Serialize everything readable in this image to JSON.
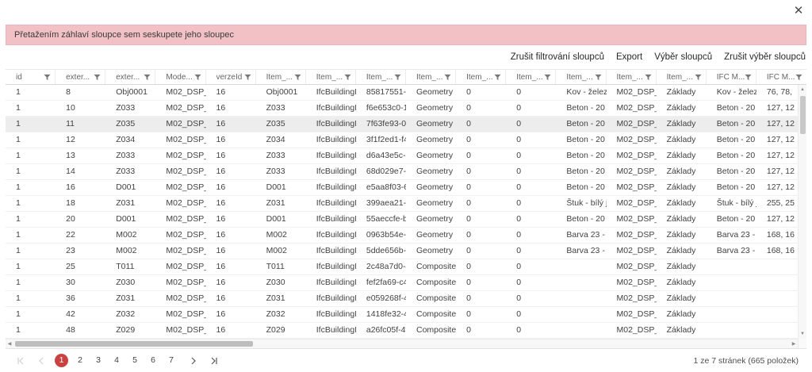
{
  "dialog": {
    "banner_text": "Přetažením záhlaví sloupce sem seskupete jeho sloupec"
  },
  "toolbar": {
    "links": [
      "Zrušit filtrování sloupců",
      "Export",
      "Výběr sloupců",
      "Zrušit výběr sloupců"
    ]
  },
  "grid": {
    "columns": [
      "id",
      "exter...",
      "exter...",
      "Mode...",
      "verzeId",
      "Item_...",
      "Item_...",
      "Item_...",
      "Item_...",
      "Item_...",
      "Item_...",
      "Item_...",
      "Item_...",
      "Item_...",
      "IFC M...",
      "IFC M..."
    ],
    "selected_row_index": 2,
    "rows": [
      [
        "1",
        "8",
        "Obj0001",
        "M02_DSP_...",
        "16",
        "Obj0001",
        "IfcBuildingE...",
        "85817551-f...",
        "Geometry",
        "0",
        "0",
        "Kov - železo",
        "M02_DSP_...",
        "Základy",
        "Kov - železo",
        "76, 78,"
      ],
      [
        "1",
        "10",
        "Z033",
        "M02_DSP_...",
        "16",
        "Z033",
        "IfcBuildingE...",
        "f6e653c0-1...",
        "Geometry",
        "0",
        "0",
        "Beton - 20",
        "M02_DSP_...",
        "Základy",
        "Beton - 20",
        "127, 12"
      ],
      [
        "1",
        "11",
        "Z035",
        "M02_DSP_...",
        "16",
        "Z035",
        "IfcBuildingE...",
        "7f63fe93-0...",
        "Geometry",
        "0",
        "0",
        "Beton - 20",
        "M02_DSP_...",
        "Základy",
        "Beton - 20",
        "127, 12"
      ],
      [
        "1",
        "12",
        "Z034",
        "M02_DSP_...",
        "16",
        "Z034",
        "IfcBuildingE...",
        "3f1f2ed1-f4...",
        "Geometry",
        "0",
        "0",
        "Beton - 20",
        "M02_DSP_...",
        "Základy",
        "Beton - 20",
        "127, 12"
      ],
      [
        "1",
        "13",
        "Z033",
        "M02_DSP_...",
        "16",
        "Z033",
        "IfcBuildingE...",
        "d6a43e5c-b...",
        "Geometry",
        "0",
        "0",
        "Beton - 20",
        "M02_DSP_...",
        "Základy",
        "Beton - 20",
        "127, 12"
      ],
      [
        "1",
        "14",
        "Z033",
        "M02_DSP_...",
        "16",
        "Z033",
        "IfcBuildingE...",
        "68d029e7-d...",
        "Geometry",
        "0",
        "0",
        "Beton - 20",
        "M02_DSP_...",
        "Základy",
        "Beton - 20",
        "127, 12"
      ],
      [
        "1",
        "16",
        "D001",
        "M02_DSP_...",
        "16",
        "D001",
        "IfcBuildingE...",
        "e5aa8f03-6...",
        "Geometry",
        "0",
        "0",
        "Beton - 20",
        "M02_DSP_...",
        "Základy",
        "Beton - 20",
        "127, 12"
      ],
      [
        "1",
        "18",
        "Z031",
        "M02_DSP_...",
        "16",
        "Z031",
        "IfcBuildingE...",
        "399aea21-3...",
        "Geometry",
        "0",
        "0",
        "Štuk - bílý je...",
        "M02_DSP_...",
        "Základy",
        "Štuk - bílý je...",
        "255, 25"
      ],
      [
        "1",
        "20",
        "D001",
        "M02_DSP_...",
        "16",
        "D001",
        "IfcBuildingE...",
        "55aeccfe-b...",
        "Geometry",
        "0",
        "0",
        "Beton - 20",
        "M02_DSP_...",
        "Základy",
        "Beton - 20",
        "127, 12"
      ],
      [
        "1",
        "22",
        "M002",
        "M02_DSP_...",
        "16",
        "M002",
        "IfcBuildingE...",
        "0963b54e-7...",
        "Geometry",
        "0",
        "0",
        "Barva 23 - s...",
        "M02_DSP_...",
        "Základy",
        "Barva 23 - s...",
        "168, 16"
      ],
      [
        "1",
        "23",
        "M002",
        "M02_DSP_...",
        "16",
        "M002",
        "IfcBuildingE...",
        "5dde656b-2...",
        "Geometry",
        "0",
        "0",
        "Barva 23 - s...",
        "M02_DSP_...",
        "Základy",
        "Barva 23 - s...",
        "168, 16"
      ],
      [
        "1",
        "25",
        "T011",
        "M02_DSP_...",
        "16",
        "T011",
        "IfcBuildingE...",
        "2c48a7d0-4...",
        "Composite ...",
        "0",
        "0",
        "",
        "M02_DSP_...",
        "Základy",
        "",
        ""
      ],
      [
        "1",
        "30",
        "Z030",
        "M02_DSP_...",
        "16",
        "Z030",
        "IfcBuildingE...",
        "fef2fa69-c4...",
        "Composite ...",
        "0",
        "0",
        "",
        "M02_DSP_...",
        "Základy",
        "",
        ""
      ],
      [
        "1",
        "36",
        "Z031",
        "M02_DSP_...",
        "16",
        "Z031",
        "IfcBuildingE...",
        "e059268f-4...",
        "Composite ...",
        "0",
        "0",
        "",
        "M02_DSP_...",
        "Základy",
        "",
        ""
      ],
      [
        "1",
        "42",
        "Z032",
        "M02_DSP_...",
        "16",
        "Z032",
        "IfcBuildingE...",
        "1418fe32-4...",
        "Composite ...",
        "0",
        "0",
        "",
        "M02_DSP_...",
        "Základy",
        "",
        ""
      ],
      [
        "1",
        "48",
        "Z029",
        "M02_DSP_...",
        "16",
        "Z029",
        "IfcBuildingE...",
        "a26fc05f-4f...",
        "Composite ...",
        "0",
        "0",
        "",
        "M02_DSP_...",
        "Základy",
        "",
        ""
      ]
    ]
  },
  "pager": {
    "pages": [
      "1",
      "2",
      "3",
      "4",
      "5",
      "6",
      "7"
    ],
    "current_page": "1",
    "info": "1 ze 7 stránek (665 položek)"
  },
  "icons": {
    "close_icon": "✕",
    "scroll_up_icon": "▲",
    "scroll_down_icon": "▼",
    "scroll_left_icon": "◀",
    "scroll_right_icon": "▶"
  },
  "colors": {
    "banner_pink": "#f1c1c5",
    "accent_red": "#ca4141",
    "selected_row": "#ededed"
  }
}
